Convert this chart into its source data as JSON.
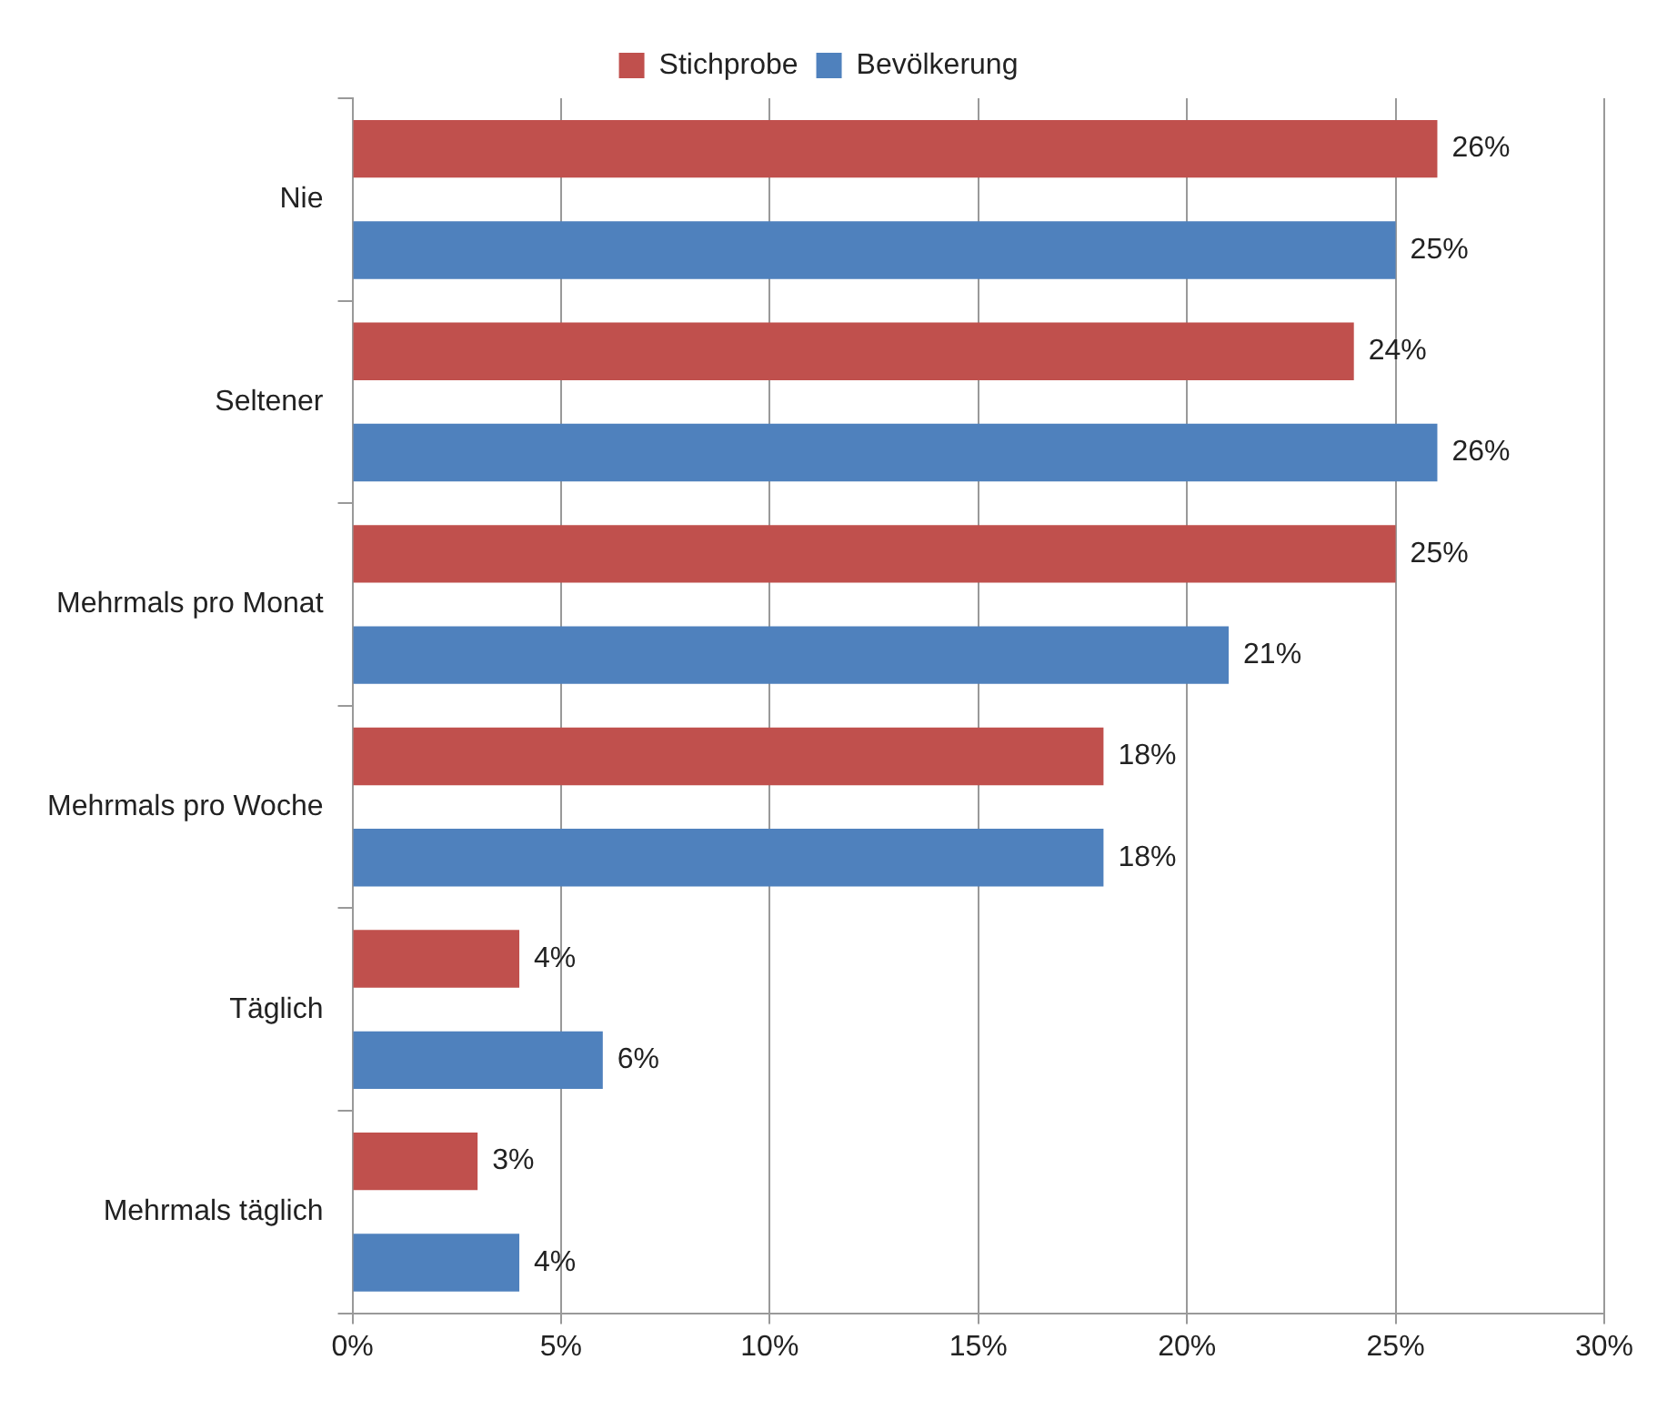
{
  "chart_data": {
    "type": "bar",
    "orientation": "horizontal",
    "categories": [
      "Nie",
      "Seltener",
      "Mehrmals pro Monat",
      "Mehrmals pro Woche",
      "Täglich",
      "Mehrmals täglich"
    ],
    "series": [
      {
        "name": "Stichprobe",
        "color": "#c0504d",
        "values": [
          26,
          24,
          25,
          18,
          4,
          3
        ],
        "value_labels": [
          "26%",
          "24%",
          "25%",
          "18%",
          "4%",
          "3%"
        ]
      },
      {
        "name": "Bevölkerung",
        "color": "#4f81bd",
        "values": [
          25,
          26,
          21,
          18,
          6,
          4
        ],
        "value_labels": [
          "25%",
          "26%",
          "21%",
          "18%",
          "6%",
          "4%"
        ]
      }
    ],
    "xlim": [
      0,
      30
    ],
    "xticks": [
      {
        "value": 0,
        "label": "0%"
      },
      {
        "value": 5,
        "label": "5%"
      },
      {
        "value": 10,
        "label": "10%"
      },
      {
        "value": 15,
        "label": "15%"
      },
      {
        "value": 20,
        "label": "20%"
      },
      {
        "value": 25,
        "label": "25%"
      },
      {
        "value": 30,
        "label": "30%"
      }
    ],
    "grid": "x",
    "legend": "top"
  }
}
